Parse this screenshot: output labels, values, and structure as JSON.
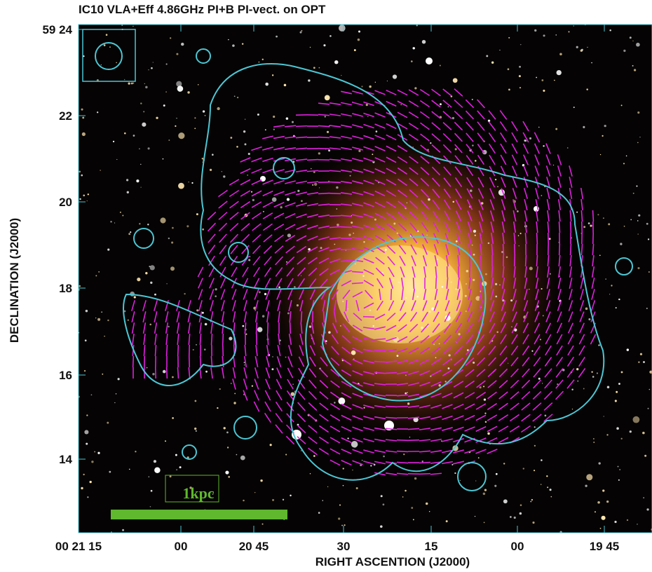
{
  "title": "IC10 VLA+Eff 4.86GHz PI+B PI-vect. on OPT",
  "x_axis": {
    "label": "RIGHT ASCENTION (J2000)",
    "ticks": [
      "00 21 15",
      "00",
      "20 45",
      "30",
      "15",
      "00",
      "19 45"
    ]
  },
  "y_axis": {
    "label": "DECLINATION (J2000)",
    "ticks": [
      "59 24",
      "22",
      "20",
      "18",
      "16",
      "14"
    ]
  },
  "scale_bar": {
    "label": "1kpc"
  }
}
